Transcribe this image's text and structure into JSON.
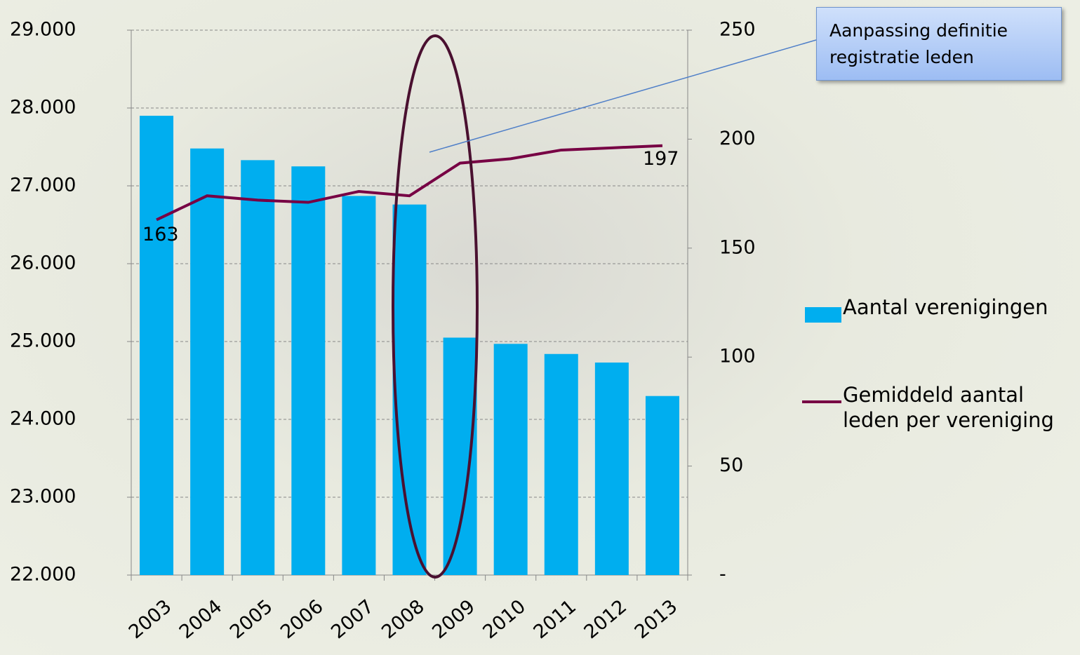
{
  "chart_data": {
    "type": "bar",
    "categories": [
      "2003",
      "2004",
      "2005",
      "2006",
      "2007",
      "2008",
      "2009",
      "2010",
      "2011",
      "2012",
      "2013"
    ],
    "series": [
      {
        "name": "Aantal verenigingen",
        "type": "bar",
        "color": "#00aeef",
        "values": [
          27900,
          27480,
          27330,
          27250,
          26870,
          26760,
          25050,
          24970,
          24840,
          24730,
          24300
        ]
      },
      {
        "name": "Gemiddeld aantal leden per vereniging",
        "type": "line",
        "axis": "y2",
        "color": "#770044",
        "values": [
          163,
          174,
          172,
          171,
          176,
          174,
          189,
          191,
          195,
          196,
          197
        ],
        "value_labels": [
          "163",
          null,
          null,
          null,
          null,
          null,
          null,
          null,
          null,
          null,
          "197"
        ]
      }
    ],
    "ylim": [
      22000,
      29000
    ],
    "yticks": [
      {
        "value": 22000,
        "label": "22.000"
      },
      {
        "value": 23000,
        "label": "23.000"
      },
      {
        "value": 24000,
        "label": "24.000"
      },
      {
        "value": 25000,
        "label": "25.000"
      },
      {
        "value": 26000,
        "label": "26.000"
      },
      {
        "value": 27000,
        "label": "27.000"
      },
      {
        "value": 28000,
        "label": "28.000"
      },
      {
        "value": 29000,
        "label": "29.000"
      }
    ],
    "y2lim": [
      0,
      250
    ],
    "y2ticks": [
      {
        "value": 0,
        "label": "-"
      },
      50,
      100,
      150,
      200,
      250
    ],
    "grid": true,
    "legend": "right",
    "annotation": "Aanpassing definitie registratie leden"
  }
}
